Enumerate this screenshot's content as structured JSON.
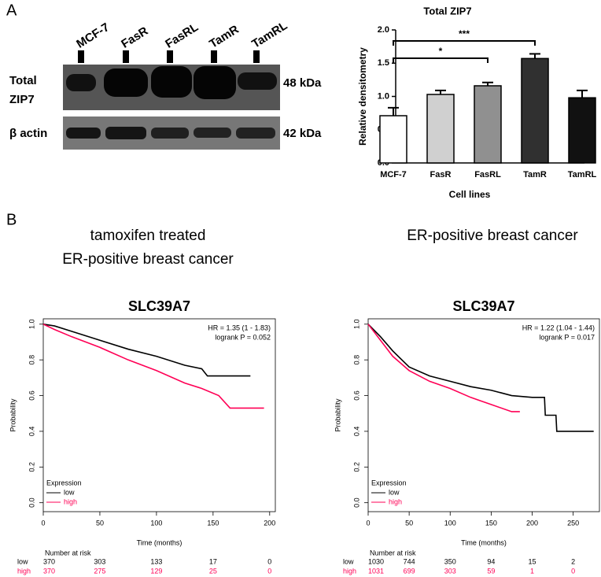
{
  "panel_labels": [
    "A",
    "B"
  ],
  "blot": {
    "lanes": [
      "MCF-7",
      "FasR",
      "FasRL",
      "TamR",
      "TamRL"
    ],
    "rows": [
      {
        "label": [
          "Total",
          "ZIP7"
        ],
        "size": "48 kDa"
      },
      {
        "label": [
          "β actin"
        ],
        "size": "42 kDa"
      }
    ]
  },
  "chart_data": [
    {
      "type": "bar",
      "title": "Total ZIP7",
      "ylabel": "Relative densitometry",
      "xlabel": "Cell lines",
      "categories": [
        "MCF-7",
        "FasR",
        "FasRL",
        "TamR",
        "TamRL"
      ],
      "values": [
        0.71,
        1.03,
        1.16,
        1.57,
        0.98
      ],
      "errors": [
        0.12,
        0.06,
        0.05,
        0.07,
        0.11
      ],
      "colors": [
        "#ffffff",
        "#d0d0d0",
        "#909090",
        "#303030",
        "#111111"
      ],
      "ylim": [
        0,
        2.0
      ],
      "yticks": [
        {
          "value": 0,
          "label": "0.0"
        },
        0.5,
        {
          "value": 1,
          "label": "1.0"
        },
        1.5,
        {
          "value": 2,
          "label": "2.0"
        }
      ],
      "annotations": [
        "***",
        "*"
      ]
    },
    {
      "type": "line",
      "subtitle": [
        "tamoxifen treated",
        "ER-positive breast cancer"
      ],
      "title": "SLC39A7",
      "xlabel": "Time (months)",
      "ylabel": "Probability",
      "annotations": [
        "HR = 1.35 (1 - 1.83)",
        "logrank P = 0.052"
      ],
      "legend_title": "Expression",
      "risk_title": "Number at risk",
      "xlim": [
        0,
        205
      ],
      "xticks": [
        0,
        50,
        100,
        150,
        200
      ],
      "ylim": [
        -0.05,
        1.03
      ],
      "yticks": [
        {
          "value": 0,
          "label": "0.0"
        },
        0.2,
        0.4,
        0.6,
        0.8,
        {
          "value": 1,
          "label": "1.0"
        }
      ],
      "series": [
        {
          "name": "low",
          "color": "#000000",
          "x": [
            0,
            10,
            25,
            50,
            75,
            100,
            125,
            140,
            145,
            183
          ],
          "values": [
            1,
            0.99,
            0.96,
            0.91,
            0.86,
            0.82,
            0.77,
            0.75,
            0.71,
            0.71
          ],
          "at_risk": [
            370,
            303,
            133,
            17,
            0
          ]
        },
        {
          "name": "high",
          "color": "#ff0055",
          "x": [
            0,
            10,
            25,
            50,
            75,
            100,
            125,
            140,
            155,
            165,
            195
          ],
          "values": [
            1,
            0.97,
            0.93,
            0.87,
            0.8,
            0.74,
            0.67,
            0.64,
            0.6,
            0.53,
            0.53
          ],
          "at_risk": [
            370,
            275,
            129,
            25,
            0
          ]
        }
      ]
    },
    {
      "type": "line",
      "subtitle": [
        "ER-positive breast cancer"
      ],
      "title": "SLC39A7",
      "xlabel": "Time (months)",
      "ylabel": "Probability",
      "annotations": [
        "HR = 1.22 (1.04 - 1.44)",
        "logrank P = 0.017"
      ],
      "legend_title": "Expression",
      "risk_title": "Number at risk",
      "xlim": [
        0,
        282
      ],
      "xticks": [
        0,
        50,
        100,
        150,
        200,
        250
      ],
      "ylim": [
        -0.05,
        1.03
      ],
      "yticks": [
        {
          "value": 0,
          "label": "0.0"
        },
        0.2,
        0.4,
        0.6,
        0.8,
        {
          "value": 1,
          "label": "1.0"
        }
      ],
      "series": [
        {
          "name": "low",
          "color": "#000000",
          "x": [
            0,
            15,
            30,
            50,
            75,
            100,
            125,
            150,
            175,
            200,
            215,
            216,
            229,
            230,
            275
          ],
          "values": [
            1,
            0.93,
            0.85,
            0.76,
            0.71,
            0.68,
            0.65,
            0.63,
            0.6,
            0.59,
            0.59,
            0.49,
            0.49,
            0.4,
            0.4
          ],
          "at_risk": [
            1030,
            744,
            350,
            94,
            15,
            2
          ]
        },
        {
          "name": "high",
          "color": "#ff0055",
          "x": [
            0,
            15,
            30,
            50,
            75,
            100,
            125,
            150,
            175,
            185
          ],
          "values": [
            1,
            0.91,
            0.82,
            0.74,
            0.68,
            0.64,
            0.59,
            0.55,
            0.51,
            0.51
          ],
          "at_risk": [
            1031,
            699,
            303,
            59,
            1,
            0
          ]
        }
      ]
    }
  ]
}
